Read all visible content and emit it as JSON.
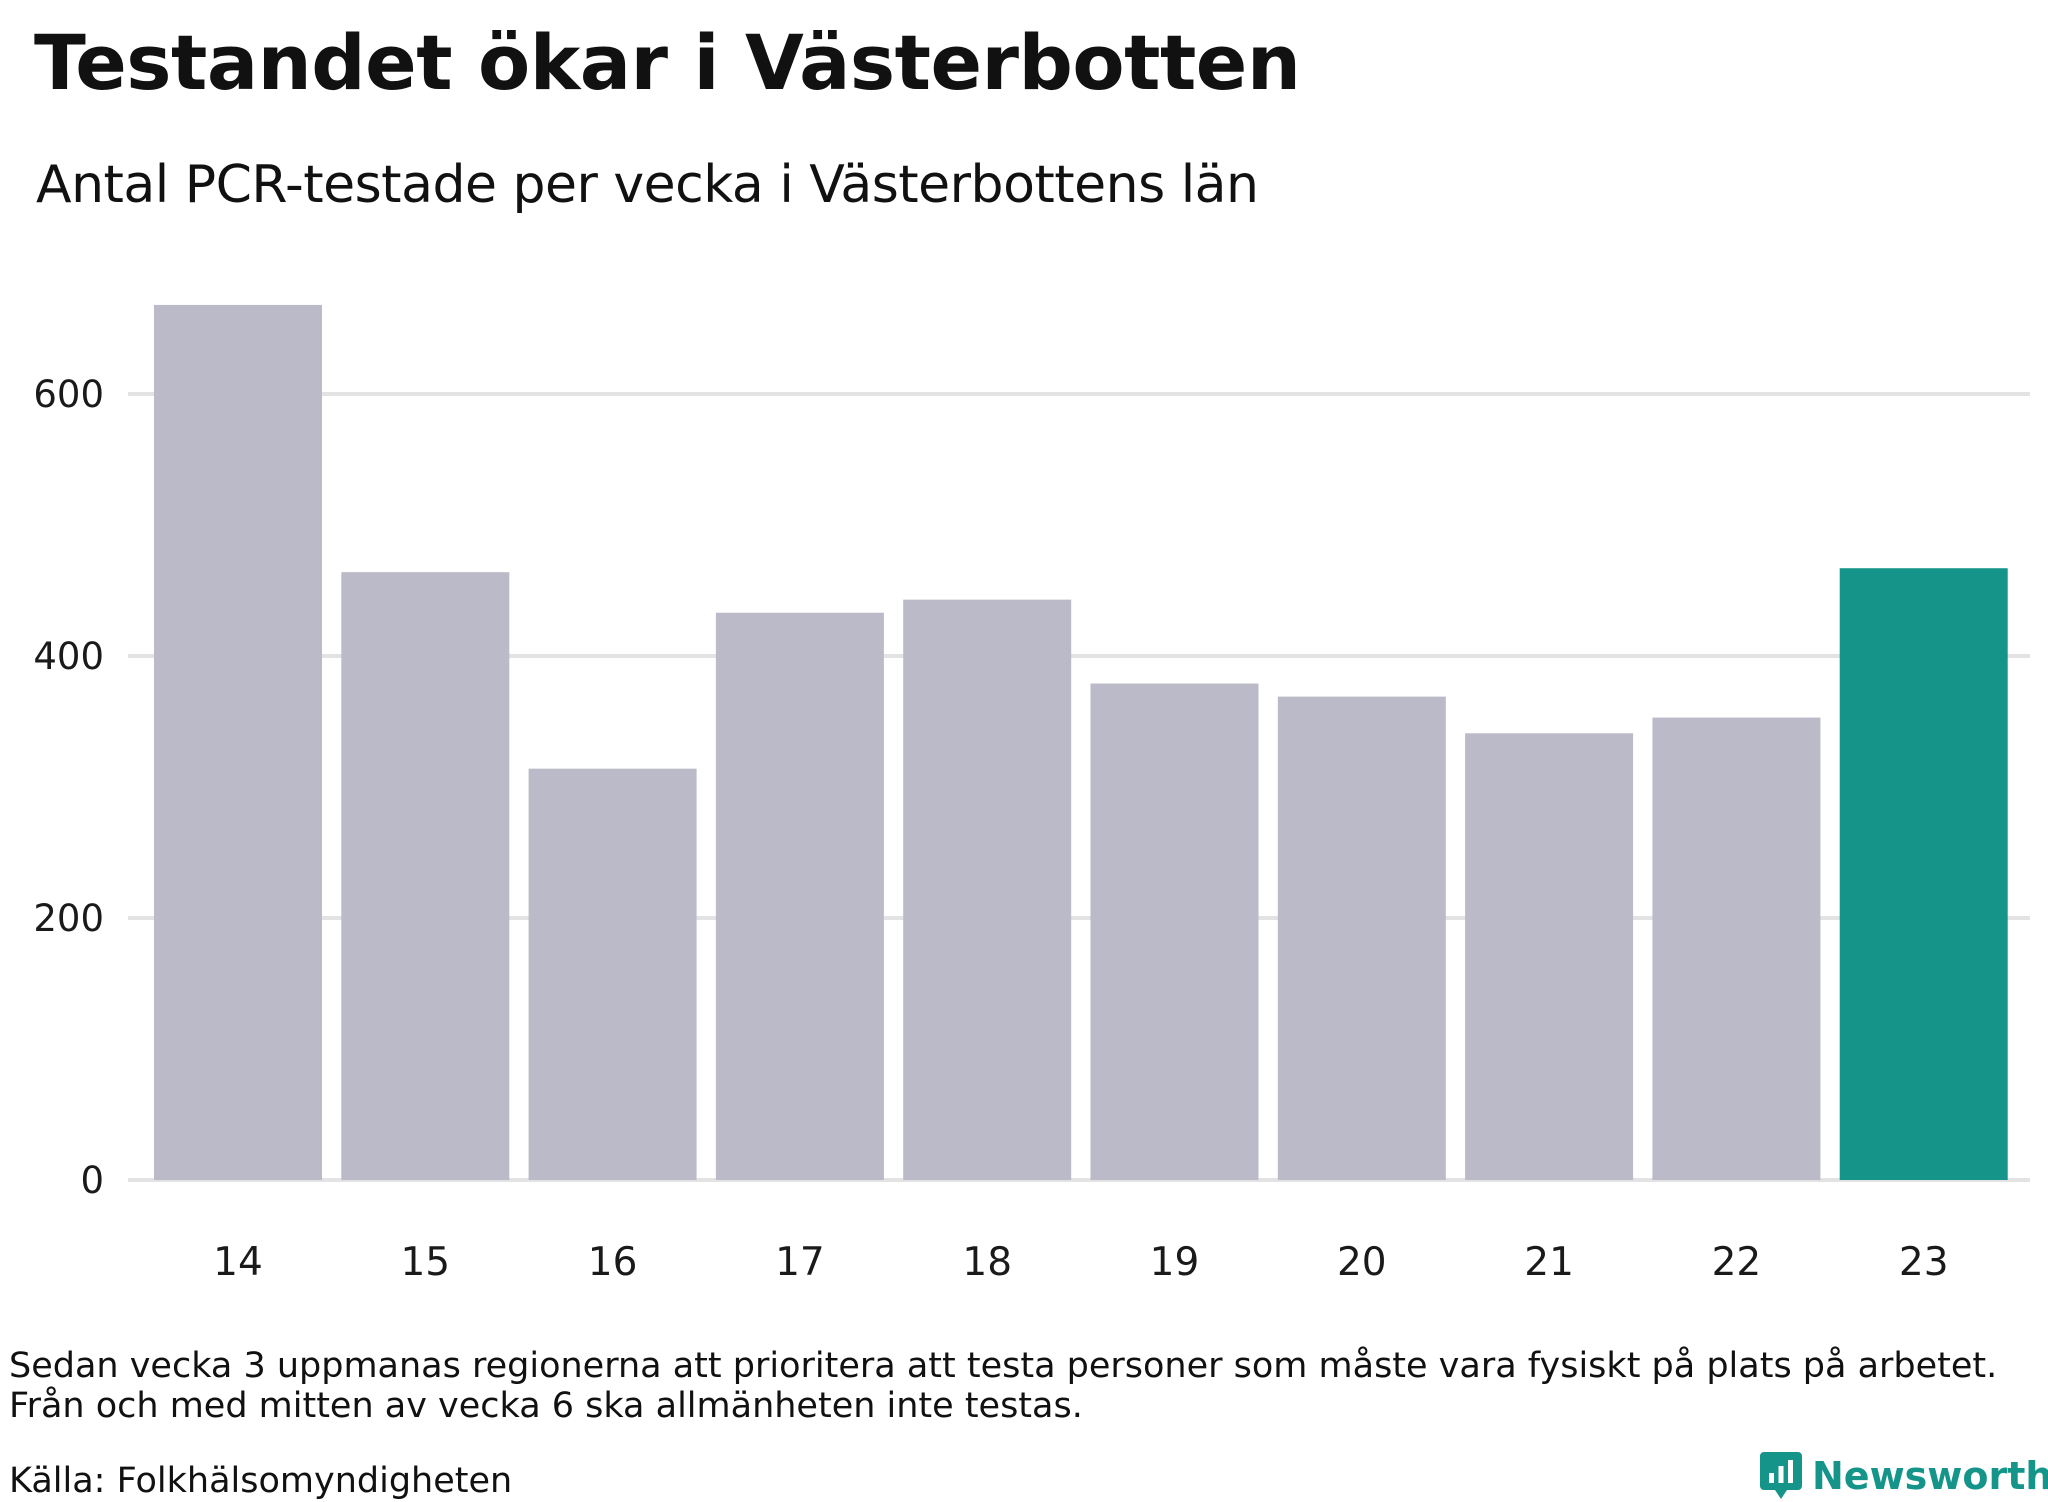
{
  "title": "Testandet ökar i Västerbotten",
  "subtitle": "Antal PCR-testade per vecka i Västerbottens län",
  "note_line1": "Sedan vecka 3 uppmanas regionerna att prioritera att testa personer som måste vara fysiskt på plats på arbetet.",
  "note_line2": "Från och med mitten av vecka 6 ska allmänheten inte testas.",
  "source": "Källa: Folkhälsomyndigheten",
  "brand": "Newsworthy",
  "colors": {
    "bar": "#bbbac8",
    "highlight": "#15958a",
    "grid": "#e3e3e3",
    "brand": "#15958a"
  },
  "chart_data": {
    "type": "bar",
    "categories": [
      "14",
      "15",
      "16",
      "17",
      "18",
      "19",
      "20",
      "21",
      "22",
      "23"
    ],
    "values": [
      668,
      464,
      314,
      433,
      443,
      379,
      369,
      341,
      353,
      467
    ],
    "highlight_category": "23",
    "xlabel": "",
    "ylabel": "",
    "ylim": [
      0,
      668
    ],
    "yticks": [
      0,
      200,
      400,
      600
    ],
    "grid": true,
    "legend": "none"
  }
}
